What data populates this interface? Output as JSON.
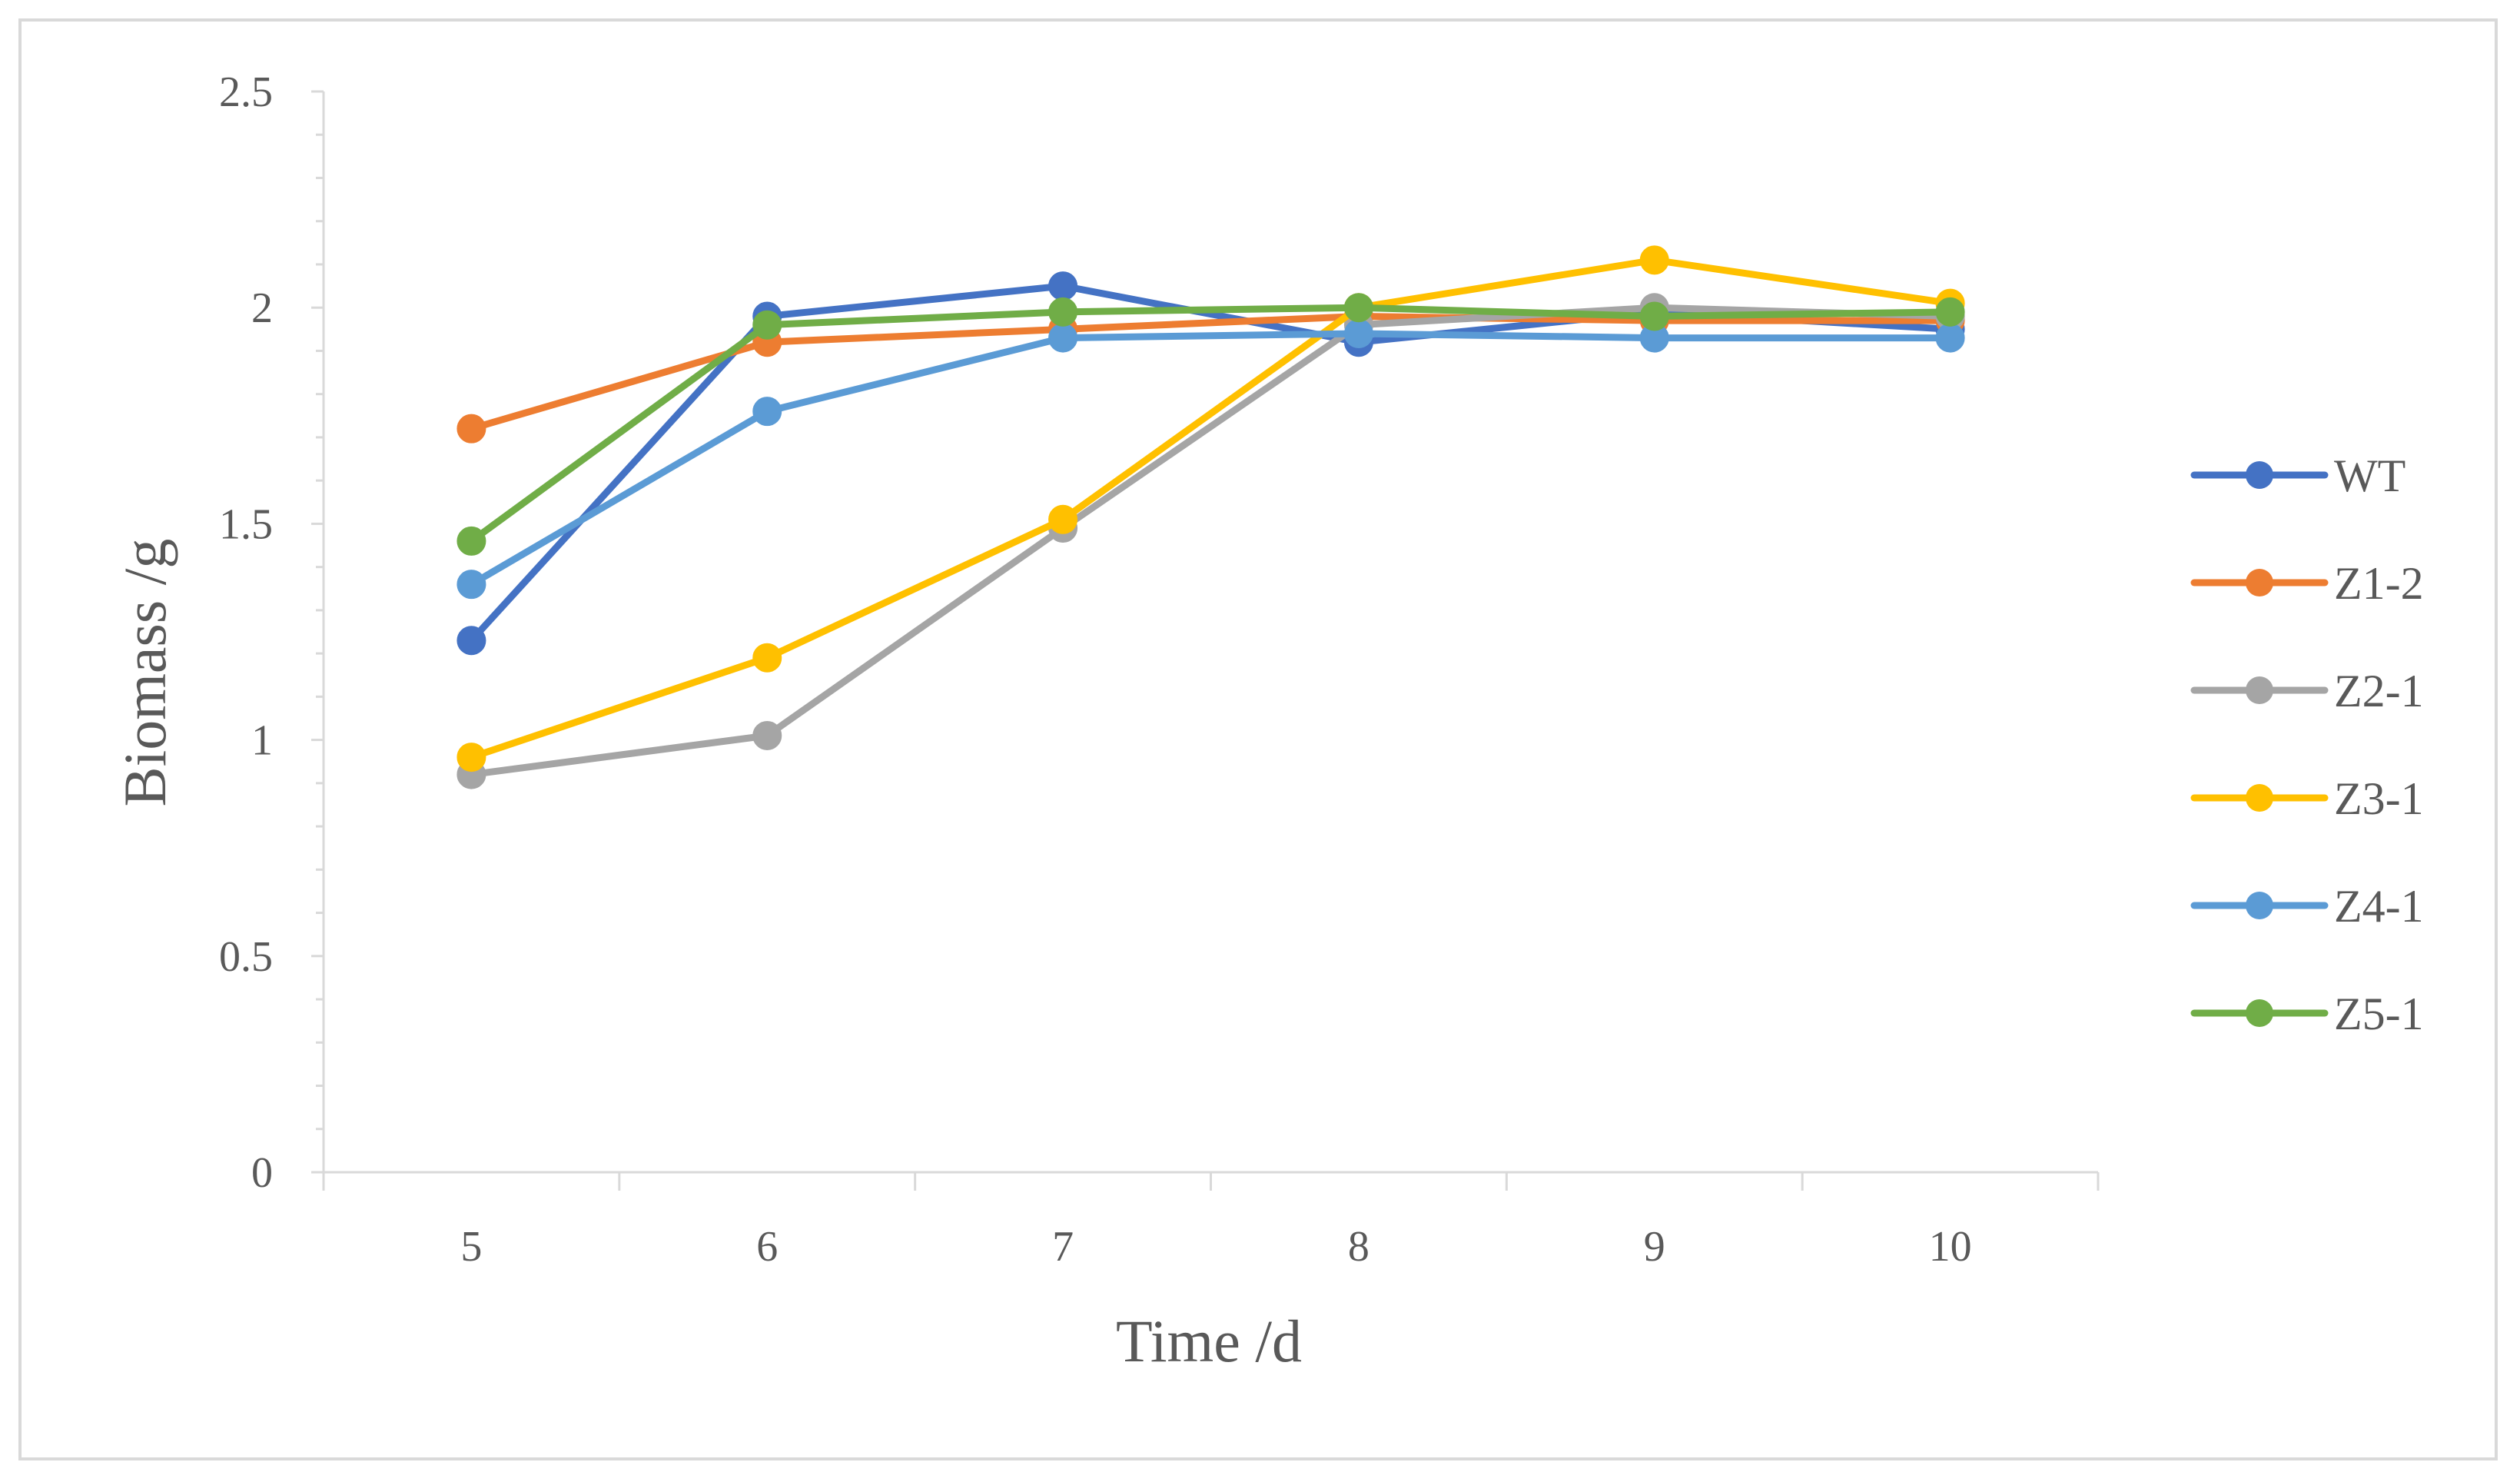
{
  "chart_data": {
    "type": "line",
    "title": "",
    "xlabel": "Time /d",
    "ylabel": "Biomass /g",
    "categories": [
      "5",
      "6",
      "7",
      "8",
      "9",
      "10"
    ],
    "ylim": [
      0,
      2.5
    ],
    "yticks": [
      "0",
      "0.5",
      "1",
      "1.5",
      "2",
      "2.5"
    ],
    "grid": false,
    "legend_position": "right",
    "series": [
      {
        "name": "WT",
        "color": "#4472C4",
        "values": [
          1.23,
          1.98,
          2.05,
          1.92,
          1.99,
          1.95
        ]
      },
      {
        "name": "Z1-2",
        "color": "#ED7D31",
        "values": [
          1.72,
          1.92,
          1.95,
          1.98,
          1.97,
          1.97
        ]
      },
      {
        "name": "Z2-1",
        "color": "#A5A5A5",
        "values": [
          0.92,
          1.01,
          1.49,
          1.96,
          2.0,
          1.98
        ]
      },
      {
        "name": "Z3-1",
        "color": "#FFC000",
        "values": [
          0.96,
          1.19,
          1.51,
          2.0,
          2.11,
          2.01
        ]
      },
      {
        "name": "Z4-1",
        "color": "#5B9BD5",
        "values": [
          1.36,
          1.76,
          1.93,
          1.94,
          1.93,
          1.93
        ]
      },
      {
        "name": "Z5-1",
        "color": "#70AD47",
        "values": [
          1.46,
          1.96,
          1.99,
          2.0,
          1.98,
          1.99
        ]
      }
    ]
  }
}
